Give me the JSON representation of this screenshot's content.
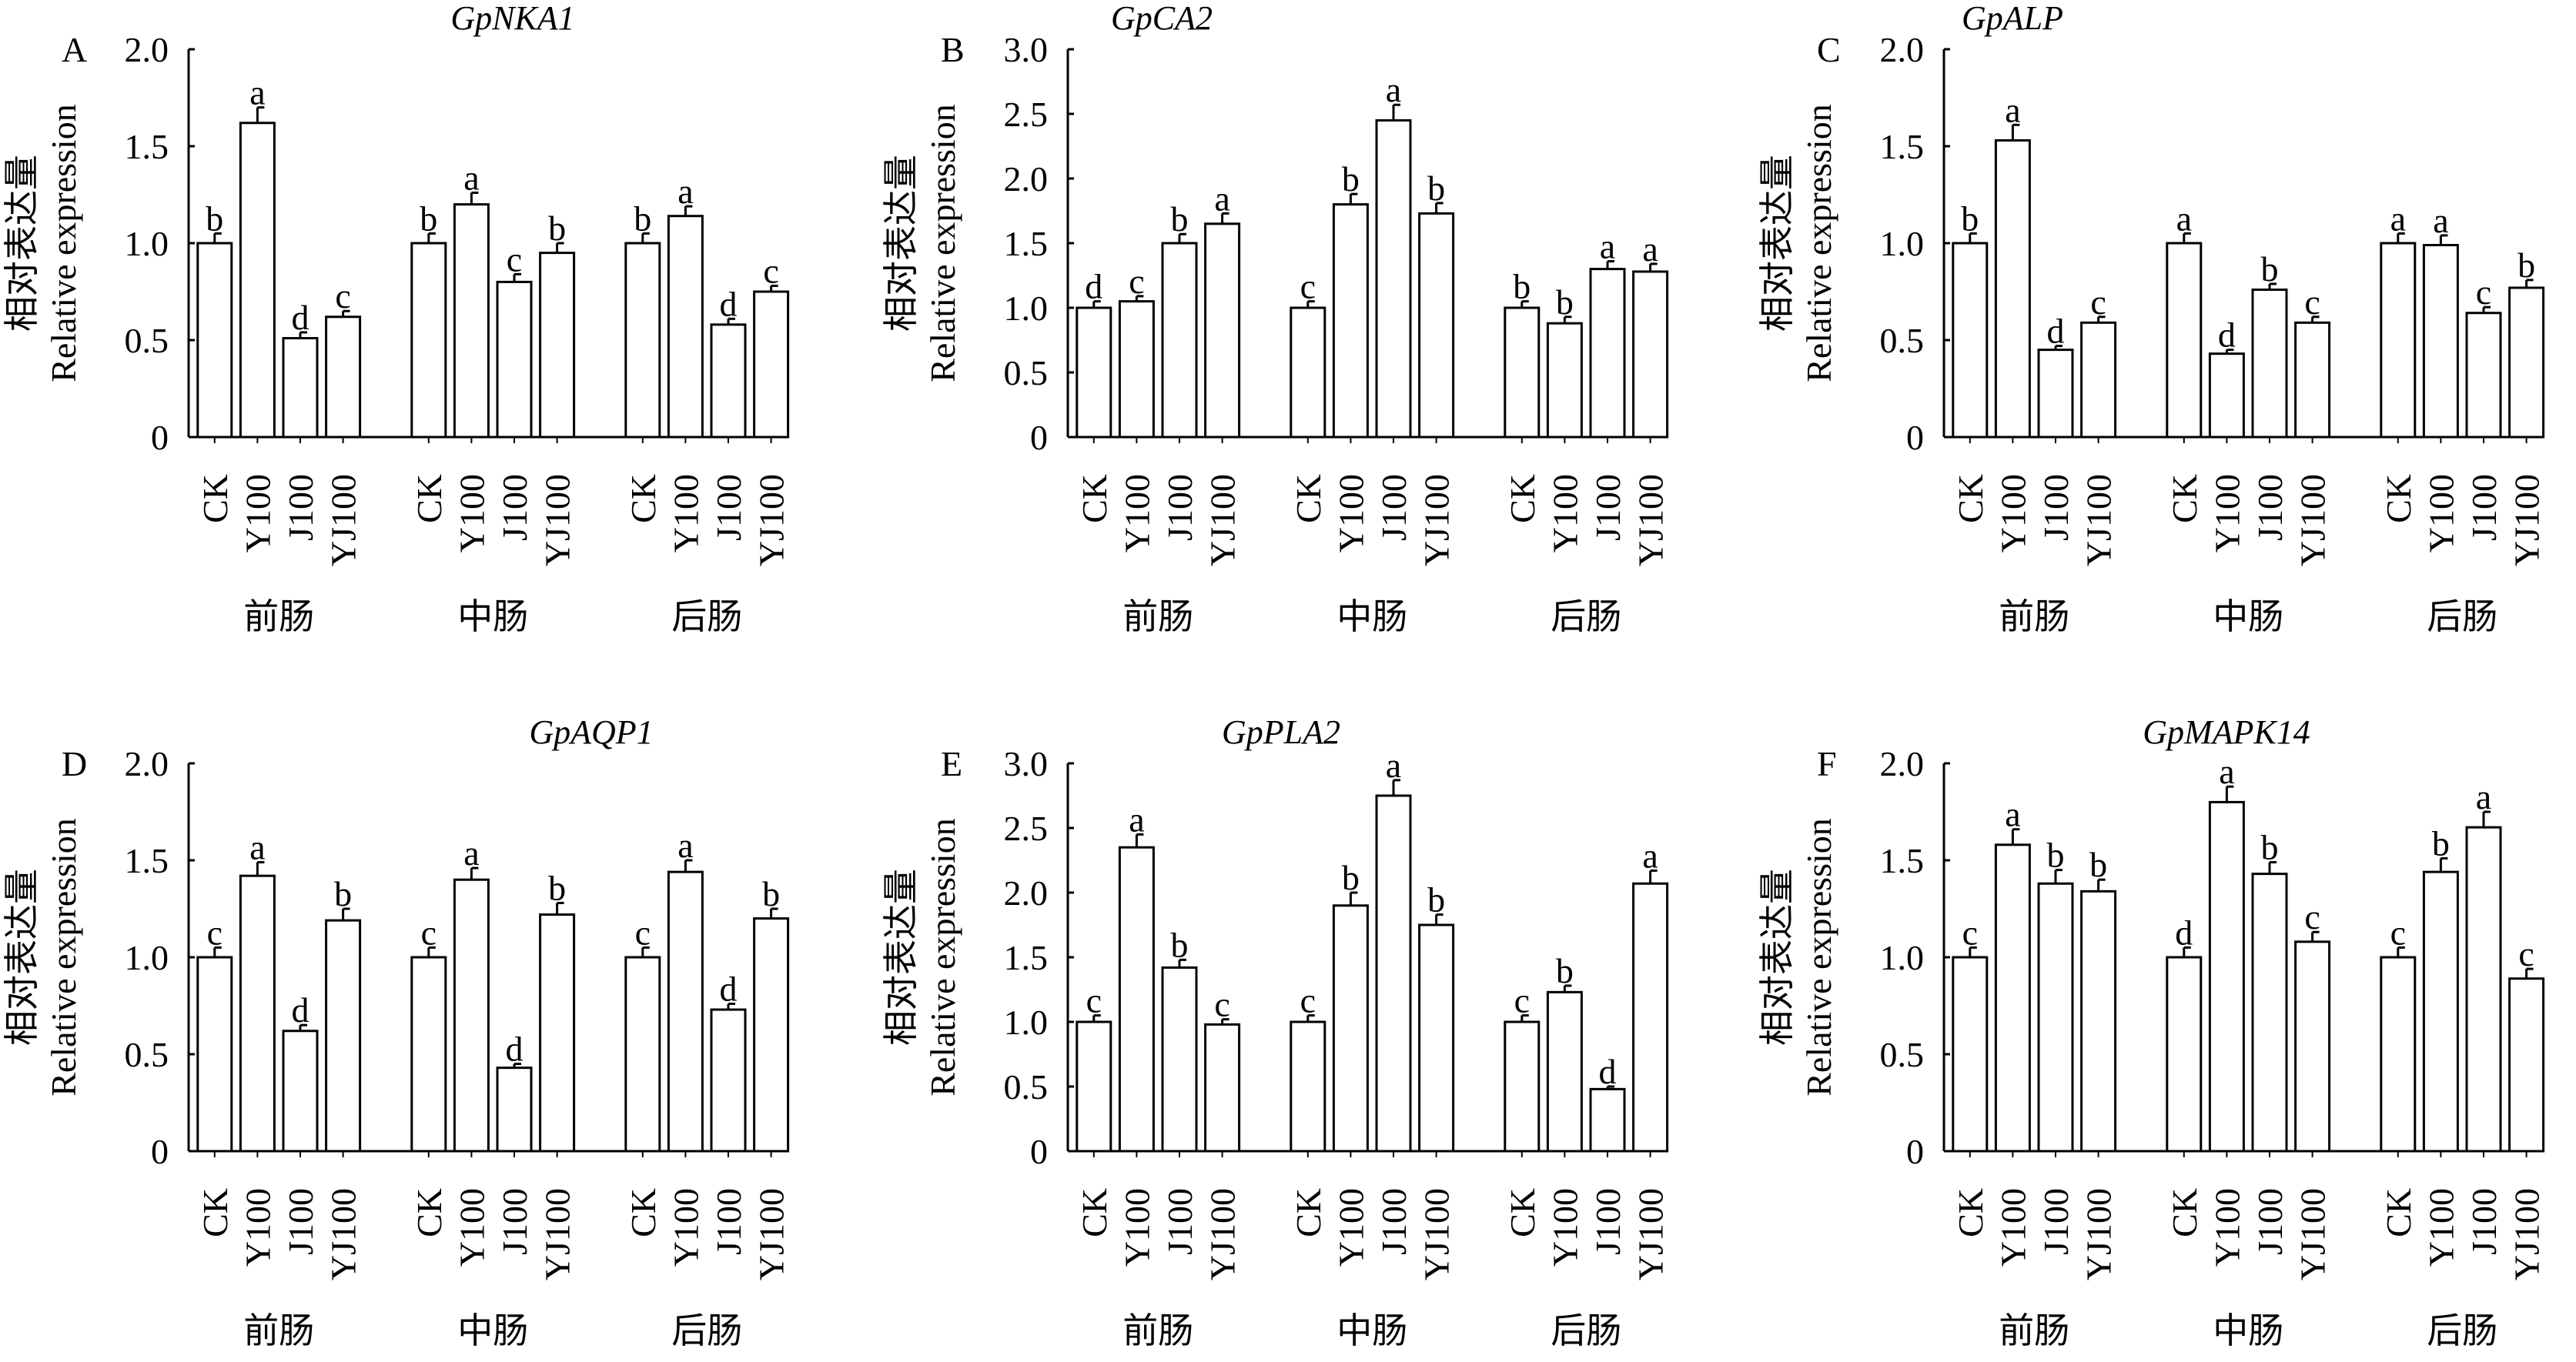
{
  "chart_data": [
    {
      "type": "bar",
      "panel_label": "A",
      "title": "GpNKA1",
      "ylabel_cn": "相对表达量",
      "ylabel": "Relative expression",
      "ylim": [
        0,
        2.0
      ],
      "yticks": [
        "0",
        "0.5",
        "1.0",
        "1.5",
        "2.0"
      ],
      "ytick_values": [
        0,
        0.5,
        1.0,
        1.5,
        2.0
      ],
      "groups": [
        {
          "name": "前肠",
          "categories": [
            "CK",
            "Y100",
            "J100",
            "YJ100"
          ],
          "values": [
            1.0,
            1.62,
            0.51,
            0.62
          ],
          "errors": [
            0.05,
            0.08,
            0.03,
            0.03
          ],
          "letters": [
            "b",
            "a",
            "d",
            "c"
          ]
        },
        {
          "name": "中肠",
          "categories": [
            "CK",
            "Y100",
            "J100",
            "YJ100"
          ],
          "values": [
            1.0,
            1.2,
            0.8,
            0.95
          ],
          "errors": [
            0.05,
            0.06,
            0.04,
            0.05
          ],
          "letters": [
            "b",
            "a",
            "c",
            "b"
          ]
        },
        {
          "name": "后肠",
          "categories": [
            "CK",
            "Y100",
            "J100",
            "YJ100"
          ],
          "values": [
            1.0,
            1.14,
            0.58,
            0.75
          ],
          "errors": [
            0.05,
            0.05,
            0.03,
            0.03
          ],
          "letters": [
            "b",
            "a",
            "d",
            "c"
          ]
        }
      ]
    },
    {
      "type": "bar",
      "panel_label": "B",
      "title": "GpCA2",
      "ylabel_cn": "相对表达量",
      "ylabel": "Relative expression",
      "ylim": [
        0,
        3.0
      ],
      "yticks": [
        "0",
        "0.5",
        "1.0",
        "1.5",
        "2.0",
        "2.5",
        "3.0"
      ],
      "ytick_values": [
        0,
        0.5,
        1.0,
        1.5,
        2.0,
        2.5,
        3.0
      ],
      "groups": [
        {
          "name": "前肠",
          "categories": [
            "CK",
            "Y100",
            "J100",
            "YJ100"
          ],
          "values": [
            1.0,
            1.05,
            1.5,
            1.65
          ],
          "errors": [
            0.05,
            0.04,
            0.07,
            0.08
          ],
          "letters": [
            "d",
            "c",
            "b",
            "a"
          ]
        },
        {
          "name": "中肠",
          "categories": [
            "CK",
            "Y100",
            "J100",
            "YJ100"
          ],
          "values": [
            1.0,
            1.8,
            2.45,
            1.73
          ],
          "errors": [
            0.05,
            0.08,
            0.12,
            0.08
          ],
          "letters": [
            "c",
            "b",
            "a",
            "b"
          ]
        },
        {
          "name": "后肠",
          "categories": [
            "CK",
            "Y100",
            "J100",
            "YJ100"
          ],
          "values": [
            1.0,
            0.88,
            1.3,
            1.28
          ],
          "errors": [
            0.05,
            0.05,
            0.06,
            0.06
          ],
          "letters": [
            "b",
            "b",
            "a",
            "a"
          ]
        }
      ]
    },
    {
      "type": "bar",
      "panel_label": "C",
      "title": "GpALP",
      "ylabel_cn": "相对表达量",
      "ylabel": "Relative expression",
      "ylim": [
        0,
        2.0
      ],
      "yticks": [
        "0",
        "0.5",
        "1.0",
        "1.5",
        "2.0"
      ],
      "ytick_values": [
        0,
        0.5,
        1.0,
        1.5,
        2.0
      ],
      "groups": [
        {
          "name": "前肠",
          "categories": [
            "CK",
            "Y100",
            "J100",
            "YJ100"
          ],
          "values": [
            1.0,
            1.53,
            0.45,
            0.59
          ],
          "errors": [
            0.05,
            0.08,
            0.02,
            0.03
          ],
          "letters": [
            "b",
            "a",
            "d",
            "c"
          ]
        },
        {
          "name": "中肠",
          "categories": [
            "CK",
            "Y100",
            "J100",
            "YJ100"
          ],
          "values": [
            1.0,
            0.43,
            0.76,
            0.59
          ],
          "errors": [
            0.05,
            0.02,
            0.03,
            0.03
          ],
          "letters": [
            "a",
            "d",
            "b",
            "c"
          ]
        },
        {
          "name": "后肠",
          "categories": [
            "CK",
            "Y100",
            "J100",
            "YJ100"
          ],
          "values": [
            1.0,
            0.99,
            0.64,
            0.77
          ],
          "errors": [
            0.05,
            0.05,
            0.03,
            0.04
          ],
          "letters": [
            "a",
            "a",
            "c",
            "b"
          ]
        }
      ]
    },
    {
      "type": "bar",
      "panel_label": "D",
      "title": "GpAQP1",
      "ylabel_cn": "相对表达量",
      "ylabel": "Relative expression",
      "ylim": [
        0,
        2.0
      ],
      "yticks": [
        "0",
        "0.5",
        "1.0",
        "1.5",
        "2.0"
      ],
      "ytick_values": [
        0,
        0.5,
        1.0,
        1.5,
        2.0
      ],
      "groups": [
        {
          "name": "前肠",
          "categories": [
            "CK",
            "Y100",
            "J100",
            "YJ100"
          ],
          "values": [
            1.0,
            1.42,
            0.62,
            1.19
          ],
          "errors": [
            0.05,
            0.07,
            0.03,
            0.06
          ],
          "letters": [
            "c",
            "a",
            "d",
            "b"
          ]
        },
        {
          "name": "中肠",
          "categories": [
            "CK",
            "Y100",
            "J100",
            "YJ100"
          ],
          "values": [
            1.0,
            1.4,
            0.43,
            1.22
          ],
          "errors": [
            0.05,
            0.06,
            0.02,
            0.06
          ],
          "letters": [
            "c",
            "a",
            "d",
            "b"
          ]
        },
        {
          "name": "后肠",
          "categories": [
            "CK",
            "Y100",
            "J100",
            "YJ100"
          ],
          "values": [
            1.0,
            1.44,
            0.73,
            1.2
          ],
          "errors": [
            0.05,
            0.06,
            0.03,
            0.05
          ],
          "letters": [
            "c",
            "a",
            "d",
            "b"
          ]
        }
      ]
    },
    {
      "type": "bar",
      "panel_label": "E",
      "title": "GpPLA2",
      "ylabel_cn": "相对表达量",
      "ylabel": "Relative expression",
      "ylim": [
        0,
        3.0
      ],
      "yticks": [
        "0",
        "0.5",
        "1.0",
        "1.5",
        "2.0",
        "2.5",
        "3.0"
      ],
      "ytick_values": [
        0,
        0.5,
        1.0,
        1.5,
        2.0,
        2.5,
        3.0
      ],
      "groups": [
        {
          "name": "前肠",
          "categories": [
            "CK",
            "Y100",
            "J100",
            "YJ100"
          ],
          "values": [
            1.0,
            2.35,
            1.42,
            0.98
          ],
          "errors": [
            0.05,
            0.1,
            0.06,
            0.04
          ],
          "letters": [
            "c",
            "a",
            "b",
            "c"
          ]
        },
        {
          "name": "中肠",
          "categories": [
            "CK",
            "Y100",
            "J100",
            "YJ100"
          ],
          "values": [
            1.0,
            1.9,
            2.75,
            1.75
          ],
          "errors": [
            0.05,
            0.1,
            0.12,
            0.08
          ],
          "letters": [
            "c",
            "b",
            "a",
            "b"
          ]
        },
        {
          "name": "后肠",
          "categories": [
            "CK",
            "Y100",
            "J100",
            "YJ100"
          ],
          "values": [
            1.0,
            1.23,
            0.48,
            2.07
          ],
          "errors": [
            0.05,
            0.05,
            0.02,
            0.1
          ],
          "letters": [
            "c",
            "b",
            "d",
            "a"
          ]
        }
      ]
    },
    {
      "type": "bar",
      "panel_label": "F",
      "title": "GpMAPK14",
      "ylabel_cn": "相对表达量",
      "ylabel": "Relative expression",
      "ylim": [
        0,
        2.0
      ],
      "yticks": [
        "0",
        "0.5",
        "1.0",
        "1.5",
        "2.0"
      ],
      "ytick_values": [
        0,
        0.5,
        1.0,
        1.5,
        2.0
      ],
      "groups": [
        {
          "name": "前肠",
          "categories": [
            "CK",
            "Y100",
            "J100",
            "YJ100"
          ],
          "values": [
            1.0,
            1.58,
            1.38,
            1.34
          ],
          "errors": [
            0.05,
            0.08,
            0.07,
            0.06
          ],
          "letters": [
            "c",
            "a",
            "b",
            "b"
          ]
        },
        {
          "name": "中肠",
          "categories": [
            "CK",
            "Y100",
            "J100",
            "YJ100"
          ],
          "values": [
            1.0,
            1.8,
            1.43,
            1.08
          ],
          "errors": [
            0.05,
            0.08,
            0.06,
            0.05
          ],
          "letters": [
            "d",
            "a",
            "b",
            "c"
          ]
        },
        {
          "name": "后肠",
          "categories": [
            "CK",
            "Y100",
            "J100",
            "YJ100"
          ],
          "values": [
            1.0,
            1.44,
            1.67,
            0.89
          ],
          "errors": [
            0.05,
            0.07,
            0.08,
            0.05
          ],
          "letters": [
            "c",
            "b",
            "a",
            "c"
          ]
        }
      ]
    }
  ]
}
